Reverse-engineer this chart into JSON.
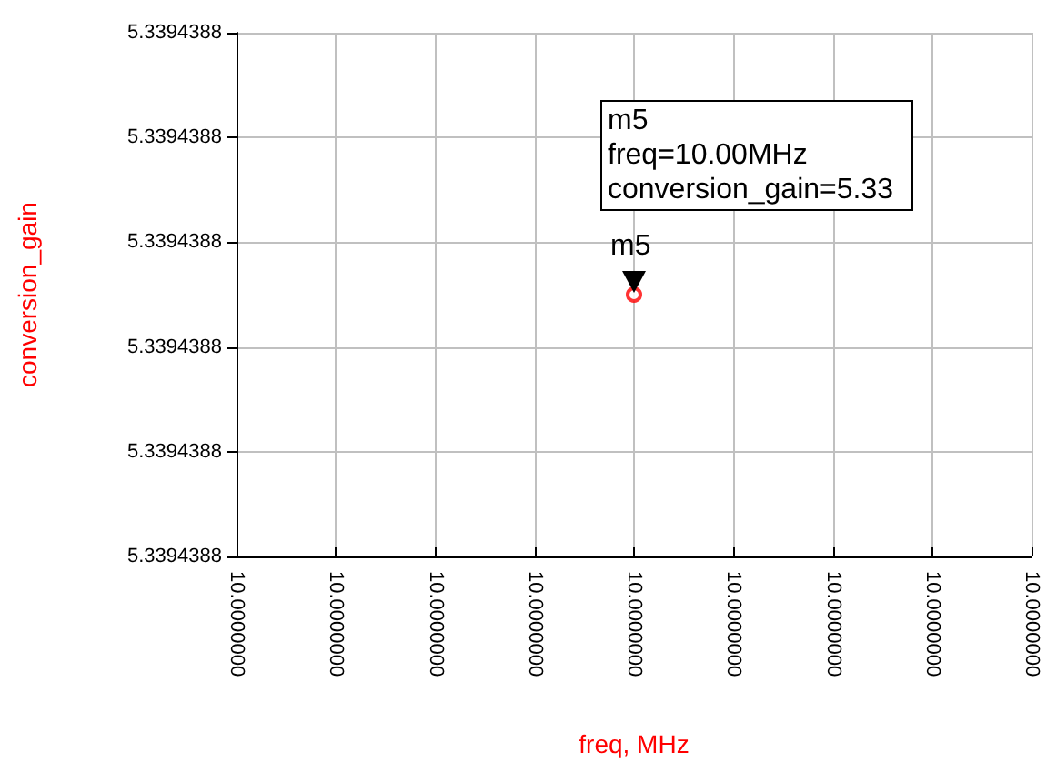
{
  "chart_data": {
    "type": "scatter",
    "xlabel": "freq, MHz",
    "ylabel": "conversion_gain",
    "categories": [
      "10.0000000",
      "10.0000000",
      "10.0000000",
      "10.0000000",
      "10.0000000",
      "10.0000000",
      "10.0000000",
      "10.0000000",
      "10.0000000"
    ],
    "series": [
      {
        "color": "#ff0000",
        "values": [
          null,
          null,
          null,
          null,
          5.339438785,
          null,
          null,
          null,
          null
        ]
      }
    ],
    "ylim": [
      5.33943876,
      5.33943881
    ],
    "yticks": [
      {
        "value": 5.33943876,
        "label": "5.3394388"
      },
      {
        "value": 5.33943877,
        "label": "5.3394388"
      },
      {
        "value": 5.33943878,
        "label": "5.3394388"
      },
      {
        "value": 5.33943879,
        "label": "5.3394388"
      },
      {
        "value": 5.3394388,
        "label": "5.3394388"
      },
      {
        "value": 5.33943881,
        "label": "5.3394388"
      }
    ],
    "annotations": [
      "m5",
      "m5\nfreq=10.00MHz\nconversion_gain=5.33"
    ],
    "grid": true,
    "marker": "circle"
  }
}
